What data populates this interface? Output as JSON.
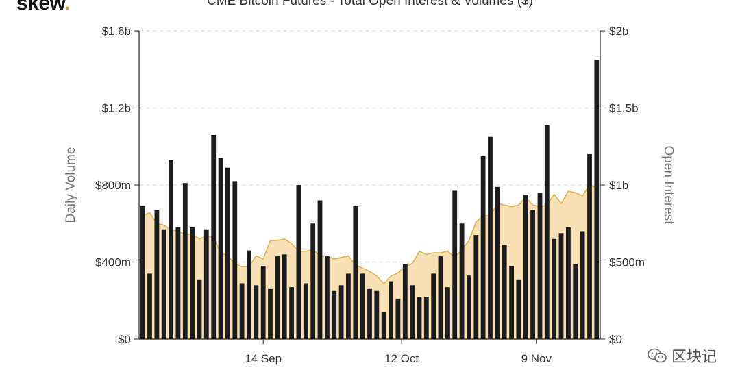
{
  "logo": {
    "text": "skew",
    "dot": "."
  },
  "watermark": {
    "text": "区块记",
    "icon": "wechat-icon"
  },
  "colors": {
    "bar": "#1c1c1f",
    "area_fill": "#f6e0b4",
    "area_line": "#e2b24a",
    "grid": "#e6e6e6",
    "axis": "#222222"
  },
  "chart_data": {
    "type": "bar",
    "title": "CME Bitcoin Futures - Total Open Interest & Volumes ($)",
    "ylabel": "Daily Volume",
    "y2label": "Open Interest",
    "ylim": [
      0,
      1600
    ],
    "y2lim": [
      0,
      2000
    ],
    "y_ticks": [
      "$0",
      "$400m",
      "$800m",
      "$1.2b",
      "$1.6b"
    ],
    "y2_ticks": [
      "$0",
      "$500m",
      "$1b",
      "$1.5b",
      "$2b"
    ],
    "x_ticks": [
      "14 Sep",
      "12 Oct",
      "9 Nov"
    ],
    "x_tick_index": [
      17.5,
      37,
      56
    ],
    "grid": true,
    "series": [
      {
        "name": "Daily Volume",
        "type": "bar",
        "unit": "$m",
        "values": [
          690,
          340,
          670,
          570,
          930,
          580,
          810,
          580,
          310,
          570,
          1060,
          940,
          890,
          820,
          290,
          460,
          280,
          380,
          260,
          430,
          440,
          270,
          800,
          290,
          600,
          720,
          430,
          250,
          280,
          340,
          690,
          340,
          260,
          250,
          140,
          300,
          210,
          390,
          280,
          220,
          220,
          340,
          430,
          270,
          770,
          600,
          330,
          540,
          950,
          1050,
          790,
          490,
          380,
          310,
          750,
          670,
          760,
          1110,
          520,
          550,
          580,
          390,
          560,
          960,
          1450
        ]
      },
      {
        "name": "Open Interest",
        "type": "area",
        "unit": "$m",
        "values": [
          800,
          820,
          750,
          740,
          710,
          700,
          680,
          680,
          650,
          670,
          660,
          560,
          540,
          490,
          470,
          470,
          540,
          520,
          640,
          640,
          650,
          620,
          570,
          570,
          580,
          540,
          540,
          520,
          530,
          540,
          480,
          460,
          440,
          410,
          360,
          410,
          430,
          470,
          490,
          570,
          550,
          560,
          560,
          570,
          530,
          580,
          640,
          760,
          800,
          800,
          880,
          870,
          860,
          870,
          920,
          870,
          860,
          870,
          940,
          880,
          960,
          950,
          930,
          1000,
          980
        ]
      }
    ]
  }
}
